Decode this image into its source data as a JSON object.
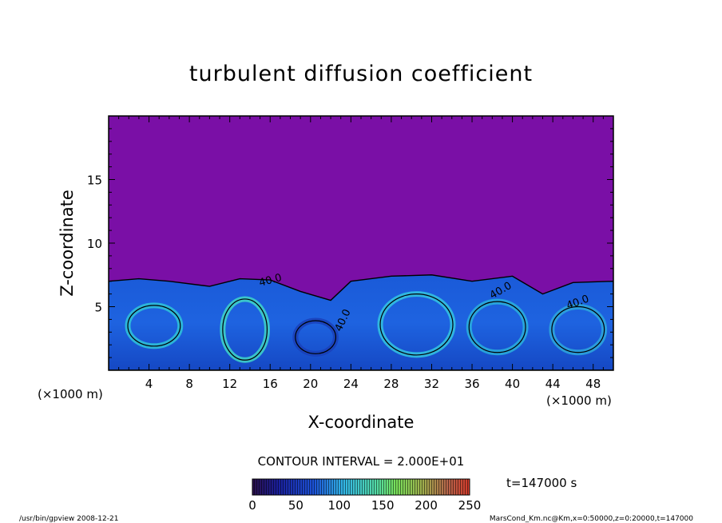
{
  "title": "turbulent diffusion coefficient",
  "xlabel": "X-coordinate",
  "ylabel": "Z-coordinate",
  "x_unit_left": "(×1000 m)",
  "x_unit_right": "(×1000 m)",
  "contour_interval_text": "CONTOUR INTERVAL = 2.000E+01",
  "time_text": "t=147000 s",
  "footer_left": "/usr/bin/gpview  2008-12-21",
  "footer_right": "MarsCond_Km.nc@Km,x=0:50000,z=0:20000,t=147000",
  "colorbar": {
    "ticks": [
      "0",
      "50",
      "100",
      "150",
      "200",
      "250"
    ],
    "values": [
      0,
      50,
      100,
      150,
      200,
      250
    ],
    "min": 0,
    "max": 250
  },
  "contour_labels": [
    "40.0",
    "40.0",
    "40.0",
    "40.0"
  ],
  "chart_data": {
    "type": "heatmap",
    "title": "turbulent diffusion coefficient",
    "xlabel": "X-coordinate",
    "ylabel": "Z-coordinate",
    "x_unit": "(×1000 m)",
    "xlim": [
      0,
      50
    ],
    "ylim": [
      0,
      20
    ],
    "x_ticks": [
      "4",
      "8",
      "12",
      "16",
      "20",
      "24",
      "28",
      "32",
      "36",
      "40",
      "44",
      "48"
    ],
    "x_tick_values": [
      4,
      8,
      12,
      16,
      20,
      24,
      28,
      32,
      36,
      40,
      44,
      48
    ],
    "y_ticks": [
      "5",
      "10",
      "15"
    ],
    "y_tick_values": [
      5,
      10,
      15
    ],
    "contour_interval": 20,
    "time_seconds": 147000,
    "colorbar_range": [
      0,
      250
    ],
    "turbulent_layer_top": [
      {
        "x": 0,
        "z": 7.0
      },
      {
        "x": 3,
        "z": 7.2
      },
      {
        "x": 6,
        "z": 7.0
      },
      {
        "x": 10,
        "z": 6.6
      },
      {
        "x": 13,
        "z": 7.2
      },
      {
        "x": 16,
        "z": 7.1
      },
      {
        "x": 19,
        "z": 6.2
      },
      {
        "x": 22,
        "z": 5.5
      },
      {
        "x": 24,
        "z": 7.0
      },
      {
        "x": 28,
        "z": 7.4
      },
      {
        "x": 32,
        "z": 7.5
      },
      {
        "x": 36,
        "z": 7.0
      },
      {
        "x": 40,
        "z": 7.4
      },
      {
        "x": 43,
        "z": 6.0
      },
      {
        "x": 46,
        "z": 6.9
      },
      {
        "x": 50,
        "z": 7.0
      }
    ]
  }
}
